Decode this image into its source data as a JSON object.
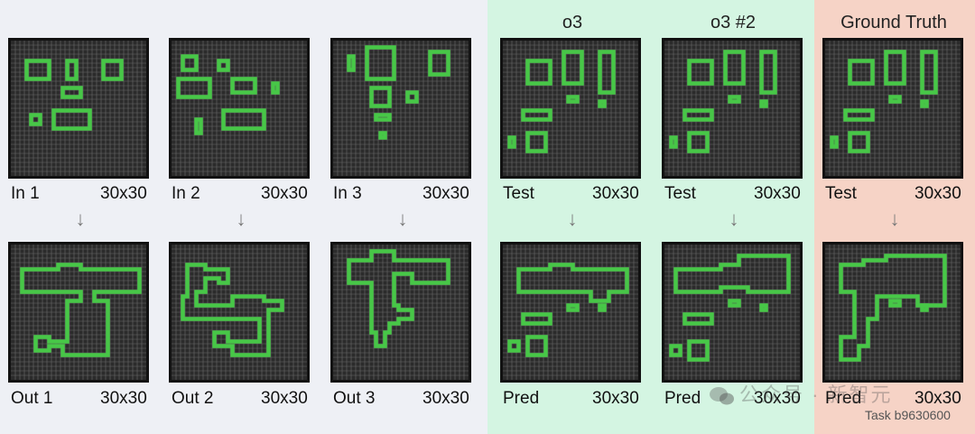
{
  "headers": {
    "o3": "o3",
    "o3_2": "o3 #2",
    "gt": "Ground Truth"
  },
  "colors": {
    "grid_bg": "#2b2b2b",
    "grid_line": "#6a6a6a",
    "border": "#111111",
    "shape": "#47c747",
    "arrow": "#7a7a7a"
  },
  "panels": [
    {
      "id": "in1",
      "label": "In 1",
      "size": "30x30",
      "shape": "rect-cluster"
    },
    {
      "id": "in2",
      "label": "In 2",
      "size": "30x30",
      "shape": "rect-cluster"
    },
    {
      "id": "in3",
      "label": "In 3",
      "size": "30x30",
      "shape": "rect-cluster"
    },
    {
      "id": "test1",
      "label": "Test",
      "size": "30x30",
      "shape": "rect-cluster"
    },
    {
      "id": "test2",
      "label": "Test",
      "size": "30x30",
      "shape": "rect-cluster"
    },
    {
      "id": "test3",
      "label": "Test",
      "size": "30x30",
      "shape": "rect-cluster"
    },
    {
      "id": "out1",
      "label": "Out 1",
      "size": "30x30",
      "shape": "connected-outline"
    },
    {
      "id": "out2",
      "label": "Out 2",
      "size": "30x30",
      "shape": "connected-outline"
    },
    {
      "id": "out3",
      "label": "Out 3",
      "size": "30x30",
      "shape": "connected-outline"
    },
    {
      "id": "pred1",
      "label": "Pred",
      "size": "30x30",
      "shape": "connected-outline"
    },
    {
      "id": "pred2",
      "label": "Pred",
      "size": "30x30",
      "shape": "connected-outline"
    },
    {
      "id": "pred3",
      "label": "Pred",
      "size": "30x30",
      "shape": "connected-outline"
    }
  ],
  "arrow_icon": "down-arrow-icon",
  "arrow_glyph": "↓",
  "watermark": "公众号 · 新智元",
  "task_id": "Task b9630600"
}
